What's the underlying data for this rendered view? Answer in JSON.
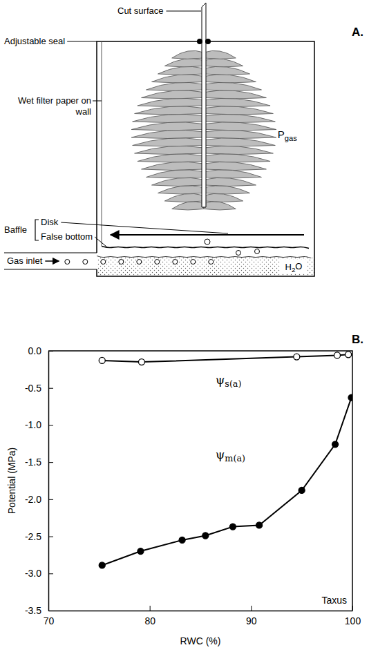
{
  "diagram": {
    "label": "A.",
    "labels": {
      "cut_surface": "Cut surface",
      "adjustable_seal": "Adjustable seal",
      "wet_filter_paper": "Wet filter paper on wall",
      "baffle": "Baffle",
      "disk": "Disk",
      "false_bottom": "False bottom",
      "gas_inlet": "Gas inlet",
      "water": "H2O",
      "gas_pressure": "Pgas"
    }
  },
  "chart_data": {
    "type": "line",
    "panel_label": "B.",
    "x_label": "RWC (%)",
    "y_label": "Potential (MPa)",
    "annotations": [
      "Taxus"
    ],
    "xlim": [
      70,
      100
    ],
    "xticks": [
      70,
      80,
      90,
      100
    ],
    "ylim": [
      -3.5,
      0
    ],
    "yticks": [
      {
        "value": 0,
        "label": "0.0"
      },
      {
        "value": -0.5,
        "label": "-0.5"
      },
      {
        "value": -1,
        "label": "-1.0"
      },
      {
        "value": -1.5,
        "label": "-1.5"
      },
      {
        "value": -2,
        "label": "-2.0"
      },
      {
        "value": -2.5,
        "label": "-2.5"
      },
      {
        "value": -3,
        "label": "-3.0"
      },
      {
        "value": -3.5,
        "label": "-3.5"
      }
    ],
    "grid": false,
    "series": [
      {
        "name": "ψs(a)",
        "color": "#000000",
        "marker": "open_circle",
        "line_style": "solid",
        "x": [
          75.3,
          79.2,
          94.5,
          98.5,
          99.6
        ],
        "values": [
          -0.13,
          -0.15,
          -0.08,
          -0.06,
          -0.05
        ]
      },
      {
        "name": "ψm(a)",
        "color": "#000000",
        "marker": "filled_circle",
        "line_style": "solid",
        "x": [
          75.3,
          79.1,
          83.2,
          85.5,
          88.2,
          90.8,
          95.0,
          98.3,
          99.9
        ],
        "values": [
          -2.89,
          -2.7,
          -2.55,
          -2.49,
          -2.37,
          -2.35,
          -1.88,
          -1.26,
          -0.63
        ]
      }
    ]
  }
}
